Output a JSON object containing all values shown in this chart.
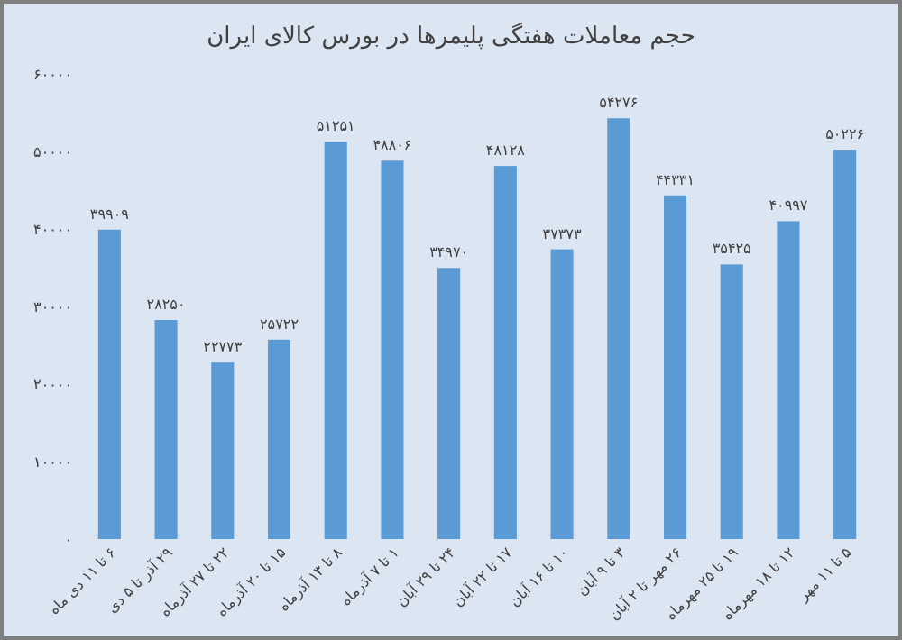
{
  "chart_data": {
    "type": "bar",
    "title": "حجم معاملات هفتگی پلیمرها در بورس کالای ایران",
    "categories": [
      "۶ تا ۱۱ دی ماه",
      "۲۹ آذر تا ۵ دی",
      "۲۲ تا ۲۷ آذرماه",
      "۱۵ تا ۲۰ آذرماه",
      "۸ تا ۱۳ آذرماه",
      "۱ تا ۷ آذرماه",
      "۲۴ تا ۲۹ آبان",
      "۱۷ تا ۲۲ آبان",
      "۱۰ تا ۱۶ آبان",
      "۳ تا ۹ آبان",
      "۲۶ مهر تا ۲ آبان",
      "۱۹ تا ۲۵ مهرماه",
      "۱۲ تا ۱۸ مهرماه",
      "۵ تا ۱۱ مهر"
    ],
    "values": [
      39909,
      28250,
      22773,
      25722,
      51251,
      48806,
      34970,
      48128,
      37373,
      54276,
      44331,
      35425,
      40997,
      50226
    ],
    "value_labels": [
      "۳۹۹۰۹",
      "۲۸۲۵۰",
      "۲۲۷۷۳",
      "۲۵۷۲۲",
      "۵۱۲۵۱",
      "۴۸۸۰۶",
      "۳۴۹۷۰",
      "۴۸۱۲۸",
      "۳۷۳۷۳",
      "۵۴۲۷۶",
      "۴۴۳۳۱",
      "۳۵۴۲۵",
      "۴۰۹۹۷",
      "۵۰۲۲۶"
    ],
    "color": "#5b9bd5",
    "ylim": [
      0,
      60000
    ],
    "yticks": [
      {
        "value": 0,
        "label": "۰"
      },
      {
        "value": 10000,
        "label": "۱۰۰۰۰"
      },
      {
        "value": 20000,
        "label": "۲۰۰۰۰"
      },
      {
        "value": 30000,
        "label": "۳۰۰۰۰"
      },
      {
        "value": 40000,
        "label": "۴۰۰۰۰"
      },
      {
        "value": 50000,
        "label": "۵۰۰۰۰"
      },
      {
        "value": 60000,
        "label": "۶۰۰۰۰"
      }
    ],
    "grid": false
  }
}
